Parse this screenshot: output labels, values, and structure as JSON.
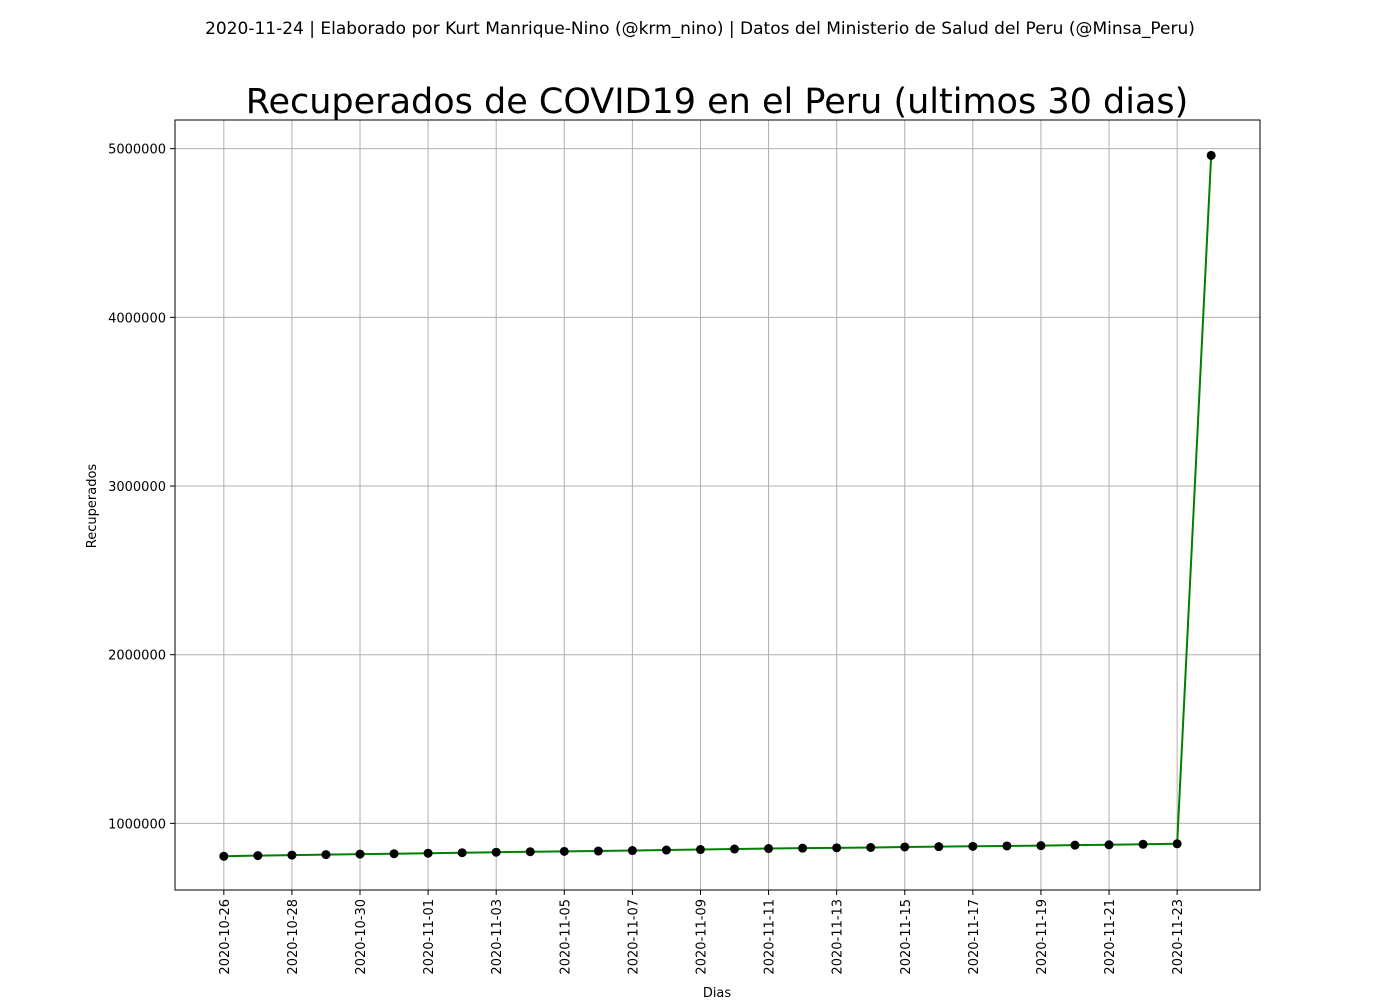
{
  "suptitle": "2020-11-24 | Elaborado por Kurt Manrique-Nino (@krm_nino) | Datos del Ministerio de Salud del Peru (@Minsa_Peru)",
  "colors": {
    "line": "#008000",
    "marker": "#000000",
    "grid": "#b0b0b0",
    "axes": "#000000"
  },
  "chart_data": {
    "type": "line",
    "title": "Recuperados de COVID19 en el Peru (ultimos 30 dias)",
    "xlabel": "Dias",
    "ylabel": "Recuperados",
    "grid": true,
    "markers": "circle",
    "x": [
      "2020-10-26",
      "2020-10-27",
      "2020-10-28",
      "2020-10-29",
      "2020-10-30",
      "2020-10-31",
      "2020-11-01",
      "2020-11-02",
      "2020-11-03",
      "2020-11-04",
      "2020-11-05",
      "2020-11-06",
      "2020-11-07",
      "2020-11-08",
      "2020-11-09",
      "2020-11-10",
      "2020-11-11",
      "2020-11-12",
      "2020-11-13",
      "2020-11-14",
      "2020-11-15",
      "2020-11-16",
      "2020-11-17",
      "2020-11-18",
      "2020-11-19",
      "2020-11-20",
      "2020-11-21",
      "2020-11-22",
      "2020-11-23",
      "2020-11-24"
    ],
    "y": [
      805000,
      809000,
      812000,
      815000,
      818000,
      820000,
      823000,
      826000,
      829000,
      832000,
      834000,
      836000,
      839000,
      842000,
      845000,
      848000,
      851000,
      853000,
      855000,
      857000,
      860000,
      862000,
      864000,
      866000,
      868000,
      871000,
      873000,
      876000,
      879000,
      4960000
    ],
    "xticks": [
      "2020-10-26",
      "2020-10-28",
      "2020-10-30",
      "2020-11-01",
      "2020-11-03",
      "2020-11-05",
      "2020-11-07",
      "2020-11-09",
      "2020-11-11",
      "2020-11-13",
      "2020-11-15",
      "2020-11-17",
      "2020-11-19",
      "2020-11-21",
      "2020-11-23"
    ],
    "yticks": [
      1000000,
      2000000,
      3000000,
      4000000,
      5000000
    ],
    "ylim": [
      605000,
      5170000
    ]
  }
}
